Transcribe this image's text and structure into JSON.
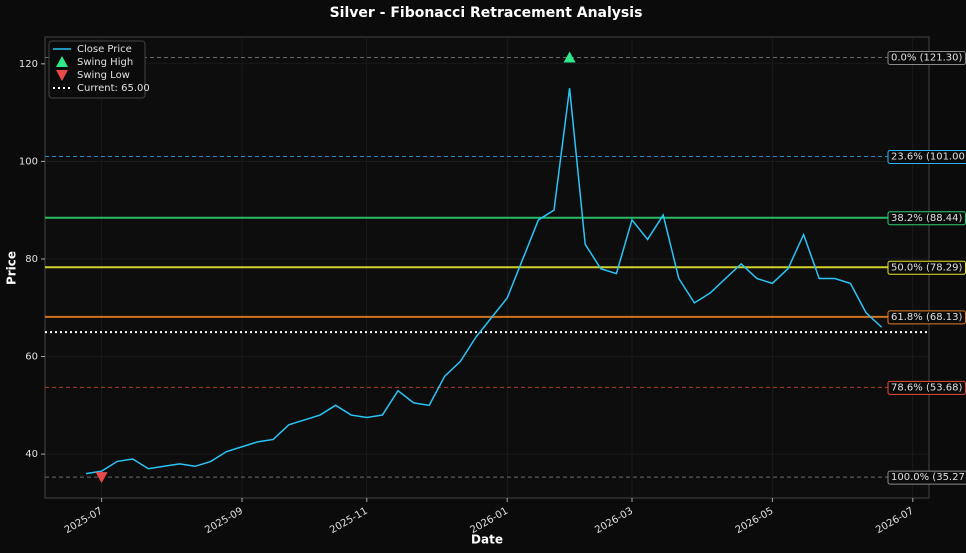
{
  "chart_data": {
    "type": "line",
    "title": "Silver - Fibonacci Retracement Analysis",
    "xlabel": "Date",
    "ylabel": "Price",
    "categories": [
      null,
      "2025-07",
      null,
      null,
      null,
      null,
      null,
      null,
      null,
      null,
      "2025-09",
      null,
      null,
      null,
      null,
      null,
      null,
      null,
      "2025-11",
      null,
      null,
      null,
      null,
      null,
      null,
      null,
      null,
      "2026-01",
      null,
      null,
      null,
      null,
      null,
      null,
      null,
      "2026-03",
      null,
      null,
      null,
      null,
      null,
      null,
      null,
      null,
      "2026-05",
      null,
      null,
      null,
      null,
      null,
      null,
      null,
      null,
      "2026-07"
    ],
    "series": [
      {
        "name": "Close Price",
        "color": "#29c5f6",
        "style": "line",
        "values": [
          36,
          36.5,
          38.5,
          39,
          37,
          37.5,
          38,
          37.5,
          38.5,
          40.5,
          41.5,
          42.5,
          43,
          46,
          47,
          48,
          50,
          48,
          47.5,
          48,
          53,
          50.5,
          50,
          56,
          59,
          64,
          68,
          72,
          80,
          88,
          90,
          115,
          83,
          78,
          77,
          88,
          84,
          89,
          76,
          71,
          73,
          76,
          79,
          76,
          75,
          78,
          85,
          76,
          76,
          75,
          69,
          66,
          null,
          null
        ]
      },
      {
        "name": "Swing High",
        "color": "#2ee88a",
        "style": "triangle-up",
        "values": [
          null,
          null,
          null,
          null,
          null,
          null,
          null,
          null,
          null,
          null,
          null,
          null,
          null,
          null,
          null,
          null,
          null,
          null,
          null,
          null,
          null,
          null,
          null,
          null,
          null,
          null,
          null,
          null,
          null,
          null,
          null,
          121.3,
          null,
          null,
          null,
          null,
          null,
          null,
          null,
          null,
          null,
          null,
          null,
          null,
          null,
          null,
          null,
          null,
          null,
          null,
          null,
          null,
          null,
          null
        ]
      },
      {
        "name": "Swing Low",
        "color": "#e84a4a",
        "style": "triangle-down",
        "values": [
          null,
          35.27,
          null,
          null,
          null,
          null,
          null,
          null,
          null,
          null,
          null,
          null,
          null,
          null,
          null,
          null,
          null,
          null,
          null,
          null,
          null,
          null,
          null,
          null,
          null,
          null,
          null,
          null,
          null,
          null,
          null,
          null,
          null,
          null,
          null,
          null,
          null,
          null,
          null,
          null,
          null,
          null,
          null,
          null,
          null,
          null,
          null,
          null,
          null,
          null,
          null,
          null,
          null,
          null
        ]
      }
    ],
    "current": {
      "label": "Current: 65.00",
      "value": 65,
      "color": "#ffffff"
    },
    "levels": [
      {
        "label": "0.0% (121.30)",
        "value": 121.3,
        "color": "#8a8a8a",
        "dashed": true
      },
      {
        "label": "23.6% (101.00)",
        "value": 101.0,
        "color": "#29b6f6",
        "dashed": true
      },
      {
        "label": "38.2% (88.44)",
        "value": 88.44,
        "color": "#2ecc71",
        "dashed": false
      },
      {
        "label": "50.0% (78.29)",
        "value": 78.29,
        "color": "#e5e52f",
        "dashed": false
      },
      {
        "label": "61.8% (68.13)",
        "value": 68.13,
        "color": "#e67e22",
        "dashed": false
      },
      {
        "label": "78.6% (53.68)",
        "value": 53.68,
        "color": "#e74c3c",
        "dashed": true
      },
      {
        "label": "100.0% (35.27)",
        "value": 35.27,
        "color": "#8a8a8a",
        "dashed": true
      }
    ],
    "ylim": [
      31,
      125.5
    ],
    "yticks": [
      40,
      60,
      80,
      100,
      120
    ],
    "grid": true
  }
}
